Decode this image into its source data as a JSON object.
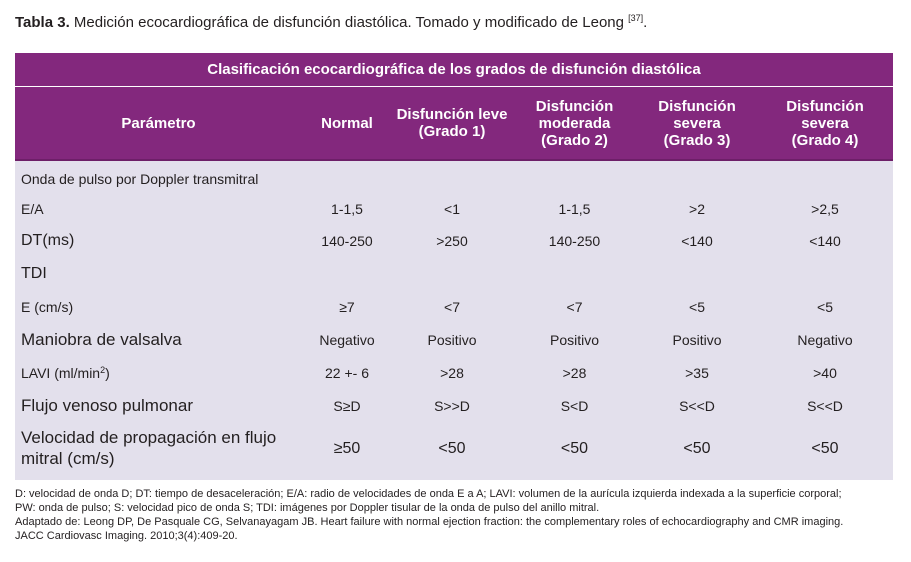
{
  "caption": {
    "label": "Tabla 3.",
    "text": " Medición ecocardiográfica de disfunción diastólica. Tomado y modificado de Leong ",
    "ref": "[37]",
    "end": "."
  },
  "table": {
    "banner_title": "Clasificación ecocardiográfica de los grados de disfunción diastólica",
    "columns": [
      "Parámetro",
      "Normal",
      "Disfunción leve\n(Grado 1)",
      "Disfunción\nmoderada\n(Grado 2)",
      "Disfunción severa\n(Grado 3)",
      "Disfunción\nsevera\n(Grado 4)"
    ],
    "rows": [
      {
        "param": "Onda de pulso por Doppler transmitral",
        "values": [
          "",
          "",
          "",
          "",
          ""
        ]
      },
      {
        "param": "E/A",
        "values": [
          "1-1,5",
          "<1",
          "1-1,5",
          ">2",
          ">2,5"
        ]
      },
      {
        "param": "DT(ms)",
        "values": [
          "140-250",
          ">250",
          "140-250",
          "<140",
          "<140"
        ]
      },
      {
        "param": "TDI",
        "values": [
          "",
          "",
          "",
          "",
          ""
        ]
      },
      {
        "param": "E (cm/s)",
        "values": [
          "≥7",
          "<7",
          "<7",
          "<5",
          "<5"
        ]
      },
      {
        "param": "Maniobra de valsalva",
        "values": [
          "Negativo",
          "Positivo",
          "Positivo",
          "Positivo",
          "Negativo"
        ]
      },
      {
        "param": "LAVI (ml/min",
        "param_sup": "2",
        "param_end": ")",
        "values": [
          "22 +- 6",
          ">28",
          ">28",
          ">35",
          ">40"
        ]
      },
      {
        "param": "Flujo venoso pulmonar",
        "values": [
          "S≥D",
          "S>>D",
          "S<D",
          "S<<D",
          "S<<D"
        ]
      },
      {
        "param": "Velocidad de propagación en flujo\nmitral (cm/s)",
        "values": [
          "≥50",
          "<50",
          "<50",
          "<50",
          "<50"
        ]
      }
    ]
  },
  "footer": {
    "abbrev_line1": "D: velocidad de onda D; DT: tiempo de desaceleración; E/A: radio de velocidades de onda E a A; LAVI: volumen de la aurícula izquierda indexada a la superficie corporal;",
    "abbrev_line2": "PW: onda de pulso; S: velocidad pico de onda S; TDI: imágenes por Doppler tisular de la onda de pulso del anillo mitral.",
    "source_line1": "Adaptado de: Leong DP, De Pasquale CG, Selvanayagam JB. Heart failure with normal ejection fraction: the complementary roles of echocardiography and CMR imaging.",
    "source_line2": "JACC Cardiovasc Imaging. 2010;3(4):409-20."
  }
}
